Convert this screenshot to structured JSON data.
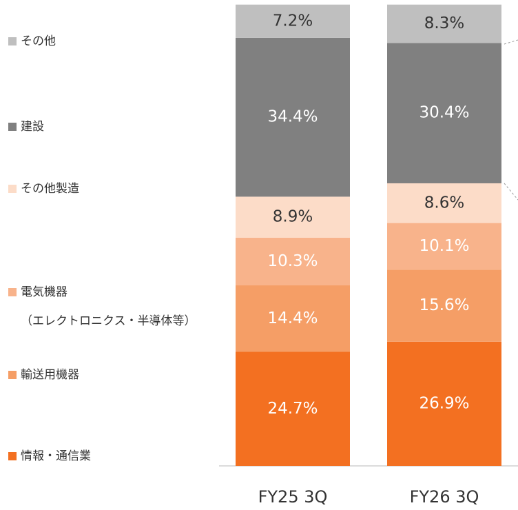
{
  "chart_data": {
    "type": "stacked_bar",
    "categories": [
      "FY25 3Q",
      "FY26 3Q"
    ],
    "ylim": [
      0,
      100
    ],
    "series": [
      {
        "name": "情報・通信業",
        "color": "#f37021",
        "label_color": "#ffffff",
        "values": [
          24.7,
          26.9
        ],
        "value_labels": [
          "24.7%",
          "26.9%"
        ]
      },
      {
        "name": "輸送用機器",
        "color": "#f59e66",
        "label_color": "#ffffff",
        "values": [
          14.4,
          15.6
        ],
        "value_labels": [
          "14.4%",
          "15.6%"
        ]
      },
      {
        "name": "電気機器",
        "name_note": "（エレクトロニクス・半導体等）",
        "color": "#f8b38b",
        "label_color": "#ffffff",
        "values": [
          10.3,
          10.1
        ],
        "value_labels": [
          "10.3%",
          "10.1%"
        ]
      },
      {
        "name": "その他製造",
        "color": "#fcdcc8",
        "label_color": "#333333",
        "values": [
          8.9,
          8.6
        ],
        "value_labels": [
          "8.9%",
          "8.6%"
        ]
      },
      {
        "name": "建設",
        "color": "#808080",
        "label_color": "#ffffff",
        "values": [
          34.4,
          30.4
        ],
        "value_labels": [
          "34.4%",
          "30.4%"
        ]
      },
      {
        "name": "その他",
        "color": "#bfbfbf",
        "label_color": "#333333",
        "values": [
          7.2,
          8.3
        ],
        "value_labels": [
          "7.2%",
          "8.3%"
        ]
      }
    ]
  }
}
